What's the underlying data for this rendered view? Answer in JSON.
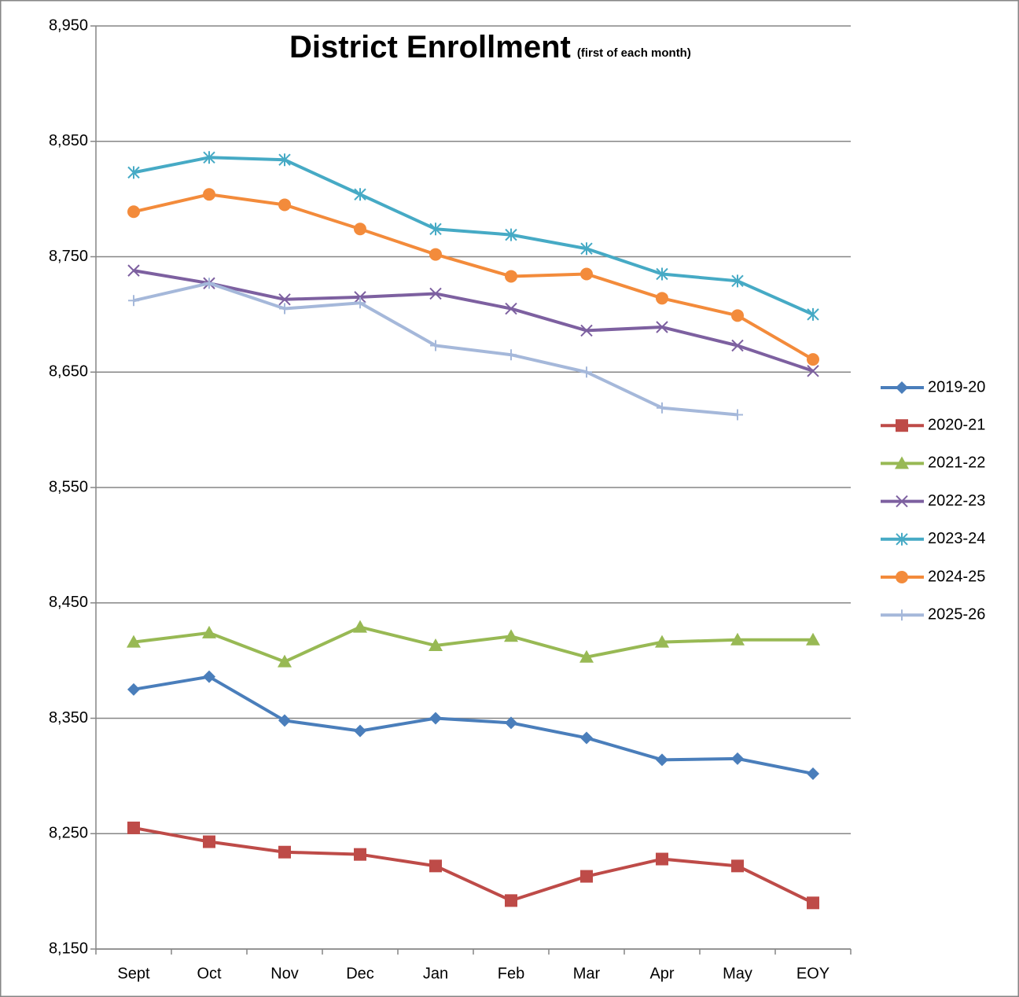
{
  "chart_data": {
    "type": "line",
    "title": "District Enrollment",
    "subtitle": "(first of each month)",
    "categories": [
      "Sept",
      "Oct",
      "Nov",
      "Dec",
      "Jan",
      "Feb",
      "Mar",
      "Apr",
      "May",
      "EOY"
    ],
    "ylim": [
      8150,
      8950
    ],
    "yticks": [
      {
        "value": 8150,
        "label": "8,150"
      },
      {
        "value": 8250,
        "label": "8,250"
      },
      {
        "value": 8350,
        "label": "8,350"
      },
      {
        "value": 8450,
        "label": "8,450"
      },
      {
        "value": 8550,
        "label": "8,550"
      },
      {
        "value": 8650,
        "label": "8,650"
      },
      {
        "value": 8750,
        "label": "8,750"
      },
      {
        "value": 8850,
        "label": "8,850"
      },
      {
        "value": 8950,
        "label": "8,950"
      }
    ],
    "grid": true,
    "legend": "right",
    "series": [
      {
        "name": "2019-20",
        "color": "#4a7ebb",
        "marker": "diamond",
        "values": [
          8375,
          8386,
          8348,
          8339,
          8350,
          8346,
          8333,
          8314,
          8315,
          8302
        ]
      },
      {
        "name": "2020-21",
        "color": "#be4b48",
        "marker": "square",
        "values": [
          8255,
          8243,
          8234,
          8232,
          8222,
          8192,
          8213,
          8228,
          8222,
          8190
        ]
      },
      {
        "name": "2021-22",
        "color": "#98b954",
        "marker": "triangle",
        "values": [
          8416,
          8424,
          8399,
          8429,
          8413,
          8421,
          8403,
          8416,
          8418,
          8418
        ]
      },
      {
        "name": "2022-23",
        "color": "#7d60a0",
        "marker": "x",
        "values": [
          8738,
          8727,
          8713,
          8715,
          8718,
          8705,
          8686,
          8689,
          8673,
          8651
        ]
      },
      {
        "name": "2023-24",
        "color": "#46aac5",
        "marker": "star",
        "values": [
          8823,
          8836,
          8834,
          8804,
          8774,
          8769,
          8757,
          8735,
          8729,
          8700
        ]
      },
      {
        "name": "2024-25",
        "color": "#f38b3b",
        "marker": "circle",
        "values": [
          8789,
          8804,
          8795,
          8774,
          8752,
          8733,
          8735,
          8714,
          8699,
          8661
        ]
      },
      {
        "name": "2025-26",
        "color": "#a5b8da",
        "marker": "plus",
        "values": [
          8712,
          8727,
          8705,
          8710,
          8673,
          8665,
          8650,
          8619,
          8613,
          null
        ]
      }
    ]
  }
}
